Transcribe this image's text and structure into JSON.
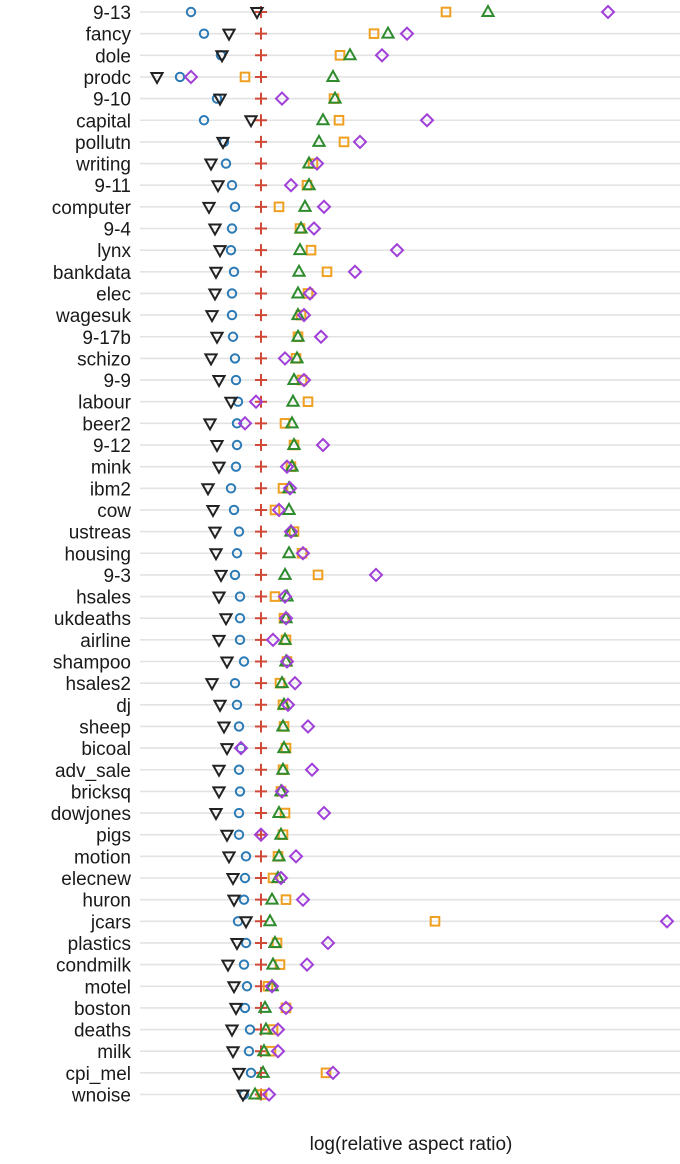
{
  "chart_data": {
    "type": "scatter",
    "title": "",
    "xlabel": "log(relative aspect ratio)",
    "ylabel": "",
    "x_relative_to": "cross",
    "marker_styles": {
      "circle": "#2c7bb6",
      "triangle-down": "#222222",
      "cross": "#d04a3a",
      "square": "#f0a020",
      "triangle-up": "#2e8b2e",
      "diamond": "#a040d8"
    },
    "categories": [
      "9-13",
      "fancy",
      "dole",
      "prodc",
      "9-10",
      "capital",
      "pollutn",
      "writing",
      "9-11",
      "computer",
      "9-4",
      "lynx",
      "bankdata",
      "elec",
      "wagesuk",
      "9-17b",
      "schizo",
      "9-9",
      "labour",
      "beer2",
      "9-12",
      "mink",
      "ibm2",
      "cow",
      "ustreas",
      "housing",
      "9-3",
      "hsales",
      "ukdeaths",
      "airline",
      "shampoo",
      "hsales2",
      "dj",
      "sheep",
      "bicoal",
      "adv_sale",
      "bricksq",
      "dowjones",
      "pigs",
      "motion",
      "elecnew",
      "huron",
      "jcars",
      "plastics",
      "condmilk",
      "motel",
      "boston",
      "deaths",
      "milk",
      "cpi_mel",
      "wnoise"
    ],
    "series": [
      {
        "marker": "circle",
        "values": [
          -70,
          -57,
          -40,
          -81,
          -44,
          -57,
          -37,
          -35,
          -29,
          -26,
          -29,
          -30,
          -27,
          -29,
          -29,
          -28,
          -26,
          -25,
          -23,
          -24,
          -24,
          -25,
          -30,
          -27,
          -22,
          -24,
          -26,
          -21,
          -21,
          -21,
          -17,
          -26,
          -24,
          -22,
          -20,
          -22,
          -21,
          -22,
          -22,
          -15,
          -16,
          -17,
          -23,
          -15,
          -17,
          -14,
          -16,
          -11,
          -12,
          -10,
          -17
        ]
      },
      {
        "marker": "triangle-down",
        "values": [
          -4,
          -32,
          -39,
          -104,
          -41,
          -10,
          -38,
          -50,
          -43,
          -52,
          -46,
          -41,
          -45,
          -46,
          -49,
          -44,
          -50,
          -42,
          -30,
          -51,
          -44,
          -42,
          -53,
          -48,
          -46,
          -45,
          -40,
          -42,
          -35,
          -42,
          -34,
          -49,
          -41,
          -37,
          -34,
          -42,
          -42,
          -45,
          -34,
          -32,
          -28,
          -27,
          -15,
          -24,
          -33,
          -27,
          -25,
          -29,
          -28,
          -22,
          -18
        ]
      },
      {
        "marker": "cross",
        "values": [
          0,
          0,
          0,
          0,
          0,
          0,
          0,
          0,
          0,
          0,
          0,
          0,
          0,
          0,
          0,
          0,
          0,
          0,
          0,
          0,
          0,
          0,
          0,
          0,
          0,
          0,
          0,
          0,
          0,
          0,
          0,
          0,
          0,
          0,
          0,
          0,
          0,
          0,
          0,
          0,
          0,
          0,
          0,
          0,
          0,
          0,
          0,
          0,
          0,
          0,
          0
        ]
      },
      {
        "marker": "square",
        "values": [
          185,
          113,
          79,
          -16,
          73,
          78,
          83,
          52,
          46,
          18,
          39,
          50,
          66,
          47,
          40,
          37,
          35,
          41,
          47,
          24,
          33,
          30,
          22,
          14,
          33,
          41,
          57,
          14,
          23,
          25,
          26,
          19,
          22,
          23,
          25,
          22,
          20,
          24,
          22,
          17,
          12,
          25,
          174,
          16,
          19,
          7,
          25,
          12,
          10,
          65,
          1
        ]
      },
      {
        "marker": "triangle-up",
        "values": [
          227,
          127,
          89,
          72,
          74,
          62,
          58,
          48,
          48,
          44,
          40,
          39,
          38,
          37,
          37,
          37,
          36,
          33,
          32,
          31,
          33,
          31,
          28,
          28,
          30,
          28,
          24,
          26,
          25,
          24,
          25,
          21,
          23,
          22,
          23,
          22,
          20,
          18,
          20,
          18,
          17,
          11,
          9,
          14,
          12,
          11,
          4,
          5,
          3,
          2,
          -6
        ]
      },
      {
        "marker": "diamond",
        "values": [
          347,
          146,
          121,
          -70,
          21,
          166,
          99,
          56,
          30,
          63,
          53,
          136,
          94,
          49,
          43,
          60,
          24,
          43,
          -5,
          -16,
          62,
          26,
          29,
          18,
          30,
          42,
          115,
          24,
          25,
          12,
          26,
          34,
          27,
          47,
          -20,
          51,
          21,
          63,
          0,
          35,
          20,
          42,
          406,
          67,
          46,
          11,
          25,
          17,
          17,
          72,
          8
        ]
      }
    ]
  }
}
